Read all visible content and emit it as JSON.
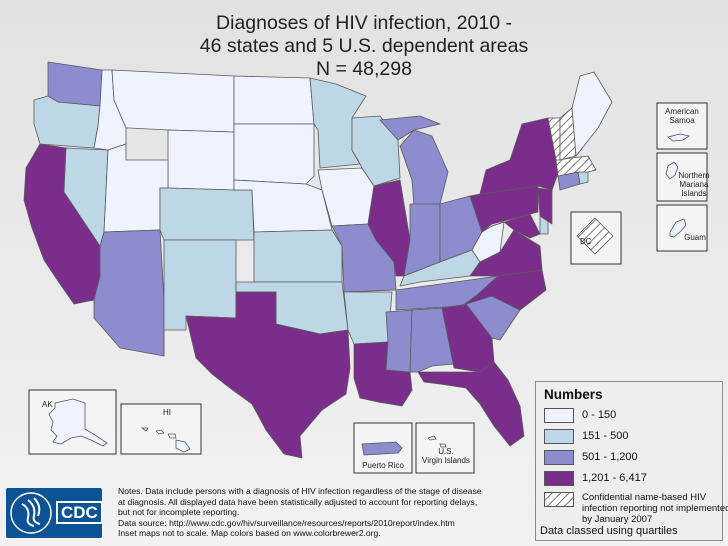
{
  "title": {
    "line1": "Diagnoses of HIV infection, 2010 -",
    "line2": "46 states and 5 U.S. dependent areas",
    "line3": "N = 48,298"
  },
  "legend": {
    "title": "Numbers",
    "classes": [
      {
        "label": "0 - 150",
        "color": "#eff3ff"
      },
      {
        "label": "151 - 500",
        "color": "#bdd7e7"
      },
      {
        "label": "501 - 1,200",
        "color": "#8c8ccf"
      },
      {
        "label": "1,201 - 6,417",
        "color": "#7b2d8b"
      }
    ],
    "hatch_label": "Confidential name-based HIV infection reporting not implemented by January 2007",
    "footer": "Data classed using quartiles"
  },
  "insets": {
    "american_samoa": "American Samoa",
    "northern_mariana": "Northern Mariana Islands",
    "guam": "Guam",
    "dc": "DC",
    "alaska": "AK",
    "hawaii": "HI",
    "puerto_rico": "Puerto Rico",
    "virgin_islands": "U.S. Virgin Islands"
  },
  "notes": {
    "line1": "Notes. Data include persons with a diagnosis of HIV infection regardless of the stage of disease",
    "line2": "at diagnosis. All displayed data have been statistically adjusted to account for reporting delays,",
    "line3": "but not for incomplete reporting.",
    "line4": "Data source: http://www.cdc.gov/hiv/surveillance/resources/reports/2010report/index.htm",
    "line5": "Inset maps not to scale. Map colors based on www.colorbrewer2.org."
  },
  "logo": {
    "text": "CDC"
  },
  "states": [
    {
      "name": "WA",
      "class": "501 - 1,200"
    },
    {
      "name": "OR",
      "class": "151 - 500"
    },
    {
      "name": "CA",
      "class": "1,201 - 6,417"
    },
    {
      "name": "NV",
      "class": "151 - 500"
    },
    {
      "name": "ID",
      "class": "0 - 150"
    },
    {
      "name": "MT",
      "class": "0 - 150"
    },
    {
      "name": "WY",
      "class": "0 - 150"
    },
    {
      "name": "UT",
      "class": "0 - 150"
    },
    {
      "name": "AZ",
      "class": "501 - 1,200"
    },
    {
      "name": "CO",
      "class": "151 - 500"
    },
    {
      "name": "NM",
      "class": "151 - 500"
    },
    {
      "name": "ND",
      "class": "0 - 150"
    },
    {
      "name": "SD",
      "class": "0 - 150"
    },
    {
      "name": "NE",
      "class": "0 - 150"
    },
    {
      "name": "KS",
      "class": "151 - 500"
    },
    {
      "name": "OK",
      "class": "151 - 500"
    },
    {
      "name": "TX",
      "class": "1,201 - 6,417"
    },
    {
      "name": "MN",
      "class": "151 - 500"
    },
    {
      "name": "IA",
      "class": "0 - 150"
    },
    {
      "name": "MO",
      "class": "501 - 1,200"
    },
    {
      "name": "AR",
      "class": "151 - 500"
    },
    {
      "name": "LA",
      "class": "1,201 - 6,417"
    },
    {
      "name": "WI",
      "class": "151 - 500"
    },
    {
      "name": "IL",
      "class": "1,201 - 6,417"
    },
    {
      "name": "MI",
      "class": "501 - 1,200"
    },
    {
      "name": "IN",
      "class": "501 - 1,200"
    },
    {
      "name": "OH",
      "class": "501 - 1,200"
    },
    {
      "name": "KY",
      "class": "151 - 500"
    },
    {
      "name": "TN",
      "class": "501 - 1,200"
    },
    {
      "name": "MS",
      "class": "501 - 1,200"
    },
    {
      "name": "AL",
      "class": "501 - 1,200"
    },
    {
      "name": "GA",
      "class": "1,201 - 6,417"
    },
    {
      "name": "FL",
      "class": "1,201 - 6,417"
    },
    {
      "name": "SC",
      "class": "501 - 1,200"
    },
    {
      "name": "NC",
      "class": "1,201 - 6,417"
    },
    {
      "name": "VA",
      "class": "1,201 - 6,417"
    },
    {
      "name": "WV",
      "class": "0 - 150"
    },
    {
      "name": "MD",
      "class": "1,201 - 6,417"
    },
    {
      "name": "DE",
      "class": "151 - 500"
    },
    {
      "name": "NJ",
      "class": "1,201 - 6,417"
    },
    {
      "name": "PA",
      "class": "1,201 - 6,417"
    },
    {
      "name": "NY",
      "class": "1,201 - 6,417"
    },
    {
      "name": "CT",
      "class": "501 - 1,200"
    },
    {
      "name": "RI",
      "class": "151 - 500"
    },
    {
      "name": "MA",
      "class": "not reported"
    },
    {
      "name": "VT",
      "class": "not reported"
    },
    {
      "name": "NH",
      "class": "not reported"
    },
    {
      "name": "ME",
      "class": "0 - 150"
    },
    {
      "name": "DC",
      "class": "not reported"
    },
    {
      "name": "AK",
      "class": "0 - 150"
    },
    {
      "name": "HI",
      "class": "0 - 150"
    },
    {
      "name": "Puerto Rico",
      "class": "501 - 1,200"
    },
    {
      "name": "U.S. Virgin Islands",
      "class": "0 - 150"
    },
    {
      "name": "Guam",
      "class": "0 - 150"
    },
    {
      "name": "Northern Mariana Islands",
      "class": "0 - 150"
    },
    {
      "name": "American Samoa",
      "class": "0 - 150"
    }
  ]
}
